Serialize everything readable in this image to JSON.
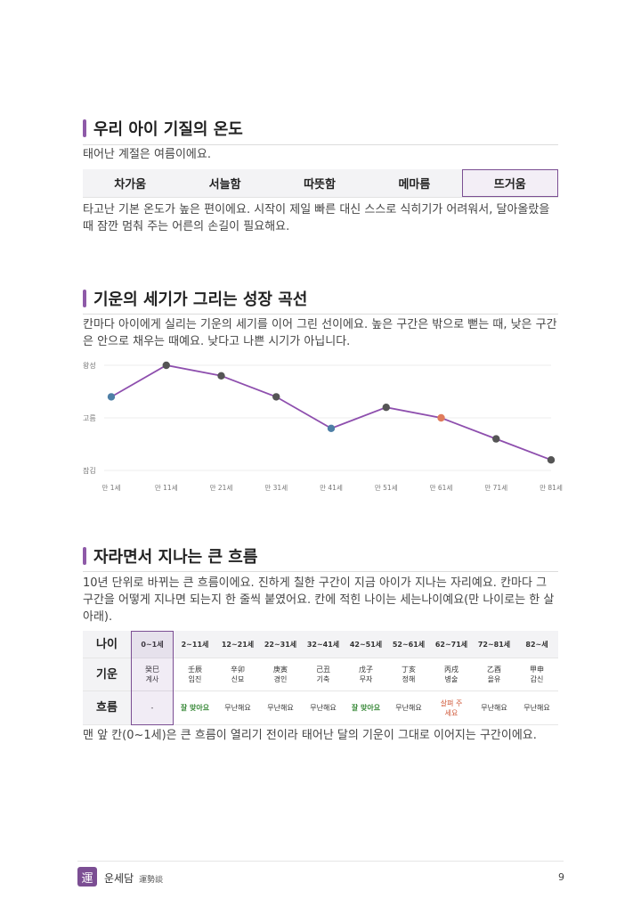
{
  "section1": {
    "title": "우리 아이 기질의 온도",
    "subtitle": "태어난 계절은 여름이에요.",
    "temps": [
      "차가움",
      "서늘함",
      "따뜻함",
      "메마름",
      "뜨거움"
    ],
    "active_index": 4,
    "body": "타고난 기본 온도가 높은 편이에요. 시작이 제일 빠른 대신 스스로 식히기가 어려워서, 달아올랐을 때 잠깐 멈춰 주는 어른의 손길이 필요해요."
  },
  "section2": {
    "title": "기운의 세기가 그리는 성장 곡선",
    "body": "칸마다 아이에게 실리는 기운의 세기를 이어 그린 선이에요. 높은 구간은 밖으로 뻗는 때, 낮은 구간은 안으로 채우는 때예요. 낮다고 나쁜 시기가 아닙니다."
  },
  "chart_data": {
    "type": "line",
    "y_levels": [
      "왕성",
      "고름",
      "잠김"
    ],
    "x": [
      "만 1세",
      "만 11세",
      "만 21세",
      "만 31세",
      "만 41세",
      "만 51세",
      "만 61세",
      "만 71세",
      "만 81세"
    ],
    "values": [
      0.7,
      1.0,
      0.9,
      0.7,
      0.4,
      0.6,
      0.5,
      0.3,
      0.1
    ],
    "ylim": [
      0,
      1
    ],
    "line_color": "#8e4fae",
    "point_colors": [
      "#4e7fa6",
      "#555555",
      "#555555",
      "#555555",
      "#4e7fa6",
      "#555555",
      "#e07c5c",
      "#555555",
      "#555555"
    ],
    "grid": true
  },
  "section3": {
    "title": "자라면서 지나는 큰 흐름",
    "body": "10년 단위로 바뀌는 큰 흐름이에요. 진하게 칠한 구간이 지금 아이가 지나는 자리예요. 칸마다 그 구간을 어떻게 지나면 되는지 한 줄씩 붙였어요. 칸에 적힌 나이는 세는나이예요(만 나이로는 한 살 아래).",
    "row_labels": [
      "나이",
      "기운",
      "흐름"
    ],
    "columns": [
      {
        "age": "0~1세",
        "hanja": "癸巳",
        "hangul": "계사",
        "flow": "-",
        "tone": "none"
      },
      {
        "age": "2~11세",
        "hanja": "壬辰",
        "hangul": "임진",
        "flow": "잘 맞아요",
        "tone": "good"
      },
      {
        "age": "12~21세",
        "hanja": "辛卯",
        "hangul": "신묘",
        "flow": "무난해요",
        "tone": "plain"
      },
      {
        "age": "22~31세",
        "hanja": "庚寅",
        "hangul": "경인",
        "flow": "무난해요",
        "tone": "plain"
      },
      {
        "age": "32~41세",
        "hanja": "己丑",
        "hangul": "기축",
        "flow": "무난해요",
        "tone": "plain"
      },
      {
        "age": "42~51세",
        "hanja": "戊子",
        "hangul": "무자",
        "flow": "잘 맞아요",
        "tone": "good"
      },
      {
        "age": "52~61세",
        "hanja": "丁亥",
        "hangul": "정해",
        "flow": "무난해요",
        "tone": "plain"
      },
      {
        "age": "62~71세",
        "hanja": "丙戌",
        "hangul": "병술",
        "flow": "살펴 주세요",
        "tone": "care"
      },
      {
        "age": "72~81세",
        "hanja": "乙酉",
        "hangul": "을유",
        "flow": "무난해요",
        "tone": "plain"
      },
      {
        "age": "82~세",
        "hanja": "甲申",
        "hangul": "갑신",
        "flow": "무난해요",
        "tone": "plain"
      }
    ],
    "active_index": 0,
    "note": "맨 앞 칸(0~1세)은 큰 흐름이 열리기 전이라 태어난 달의 기운이 그대로 이어지는 구간이에요."
  },
  "footer": {
    "logo": "運",
    "brand": "운세담",
    "brand_sub": "運勢談",
    "page": "9"
  },
  "colors": {
    "accent": "#7b4e93",
    "good": "#3a8a3a",
    "care": "#d0593a"
  }
}
